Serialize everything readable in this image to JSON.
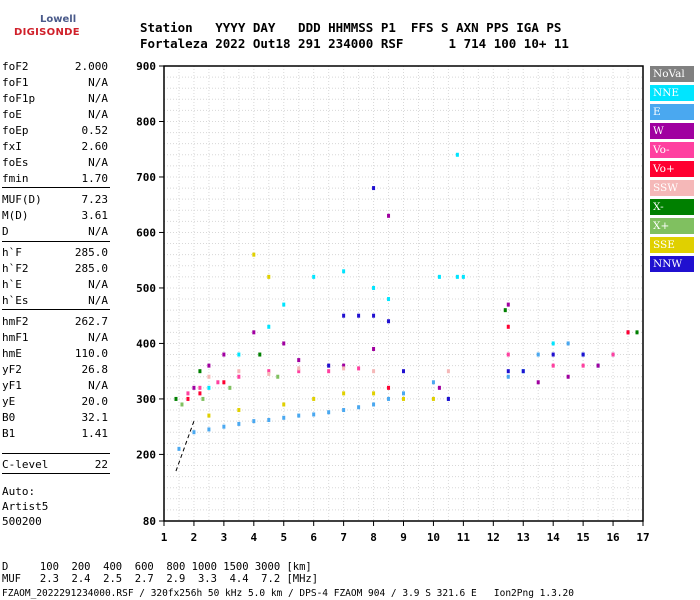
{
  "logo": {
    "top": "Lowell",
    "bottom": "DIGISONDE"
  },
  "header": {
    "line1": "Station   YYYY DAY   DDD HHMMSS P1  FFS S AXN PPS IGA PS",
    "line2": "Fortaleza 2022 Out18 291 234000 RSF      1 714 100 10+ 11"
  },
  "params": [
    {
      "k": "foF2",
      "v": "2.000"
    },
    {
      "k": "foF1",
      "v": "N/A"
    },
    {
      "k": "foF1p",
      "v": "N/A"
    },
    {
      "k": "foE",
      "v": "N/A"
    },
    {
      "k": "foEp",
      "v": "0.52"
    },
    {
      "k": "fxI",
      "v": "2.60"
    },
    {
      "k": "foEs",
      "v": "N/A"
    },
    {
      "k": "fmin",
      "v": "1.70"
    },
    {
      "k": "MUF(D)",
      "v": "7.23"
    },
    {
      "k": "M(D)",
      "v": "3.61"
    },
    {
      "k": "D",
      "v": "N/A"
    },
    {
      "k": "h`F",
      "v": "285.0"
    },
    {
      "k": "h`F2",
      "v": "285.0"
    },
    {
      "k": "h`E",
      "v": "N/A"
    },
    {
      "k": "h`Es",
      "v": "N/A"
    },
    {
      "k": "hmF2",
      "v": "262.7"
    },
    {
      "k": "hmF1",
      "v": "N/A"
    },
    {
      "k": "hmE",
      "v": "110.0"
    },
    {
      "k": "yF2",
      "v": "26.8"
    },
    {
      "k": "yF1",
      "v": "N/A"
    },
    {
      "k": "yE",
      "v": "20.0"
    },
    {
      "k": "B0",
      "v": "32.1"
    },
    {
      "k": "B1",
      "v": "1.41"
    },
    {
      "k": "C-level",
      "v": "22"
    }
  ],
  "auto": {
    "line1": "Auto:",
    "line2": "Artist5",
    "line3": "500200"
  },
  "footer": {
    "d_line": "D     100  200  400  600  800 1000 1500 3000 [km]",
    "muf_line": "MUF   2.3  2.4  2.5  2.7  2.9  3.3  4.4  7.2 [MHz]",
    "info": "FZAOM_2022291234000.RSF / 320fx256h 50 kHz 5.0 km / DPS-4 FZAOM 904 / 3.9 S 321.6 E   Ion2Png 1.3.20"
  },
  "legend": [
    {
      "label": "NoVal",
      "color": "#808080"
    },
    {
      "label": "NNE",
      "color": "#00e5ff"
    },
    {
      "label": "E",
      "color": "#4aa8f0"
    },
    {
      "label": "W",
      "color": "#a000a0"
    },
    {
      "label": "Vo-",
      "color": "#ff40a0"
    },
    {
      "label": "Vo+",
      "color": "#ff0030"
    },
    {
      "label": "SSW",
      "color": "#f5b8b8"
    },
    {
      "label": "X-",
      "color": "#008000"
    },
    {
      "label": "X+",
      "color": "#80c060"
    },
    {
      "label": "SSE",
      "color": "#e0d000"
    },
    {
      "label": "NNW",
      "color": "#2010d0"
    }
  ],
  "chart_data": {
    "type": "scatter",
    "xlim": [
      1,
      17
    ],
    "ylim": [
      80,
      900
    ],
    "x_ticks": [
      1,
      2,
      3,
      4,
      5,
      6,
      7,
      8,
      9,
      10,
      11,
      12,
      13,
      14,
      15,
      16,
      17
    ],
    "y_ticks": [
      80,
      200,
      300,
      400,
      500,
      600,
      700,
      800,
      900
    ],
    "grid": true,
    "series": [
      {
        "name": "E",
        "points": [
          [
            1.5,
            210
          ],
          [
            2.0,
            240
          ],
          [
            2.5,
            245
          ],
          [
            3.0,
            250
          ],
          [
            3.5,
            255
          ],
          [
            4.0,
            260
          ],
          [
            4.5,
            262
          ],
          [
            5.0,
            266
          ],
          [
            5.5,
            270
          ],
          [
            6.0,
            272
          ],
          [
            6.5,
            276
          ],
          [
            7.0,
            280
          ],
          [
            7.5,
            285
          ],
          [
            8.0,
            290
          ],
          [
            8.5,
            300
          ],
          [
            9.0,
            310
          ],
          [
            10.0,
            330
          ],
          [
            10.5,
            300
          ],
          [
            12.5,
            340
          ],
          [
            13.5,
            380
          ],
          [
            14.5,
            400
          ],
          [
            15.5,
            360
          ]
        ]
      },
      {
        "name": "NNE",
        "points": [
          [
            2.5,
            320
          ],
          [
            3.5,
            380
          ],
          [
            4.5,
            430
          ],
          [
            5.0,
            470
          ],
          [
            6.0,
            520
          ],
          [
            7.0,
            530
          ],
          [
            8.0,
            500
          ],
          [
            8.5,
            480
          ],
          [
            10.2,
            520
          ],
          [
            10.8,
            520
          ],
          [
            11.0,
            520
          ],
          [
            10.8,
            740
          ],
          [
            13.0,
            350
          ],
          [
            14.0,
            400
          ],
          [
            15.0,
            380
          ],
          [
            16.0,
            380
          ]
        ]
      },
      {
        "name": "W",
        "points": [
          [
            2.0,
            320
          ],
          [
            2.5,
            360
          ],
          [
            3.0,
            380
          ],
          [
            4.0,
            420
          ],
          [
            5.0,
            400
          ],
          [
            5.5,
            370
          ],
          [
            7.0,
            360
          ],
          [
            8.0,
            390
          ],
          [
            8.5,
            630
          ],
          [
            10.2,
            320
          ],
          [
            12.5,
            470
          ],
          [
            13.5,
            330
          ],
          [
            14.5,
            340
          ],
          [
            15.5,
            360
          ],
          [
            16.5,
            420
          ]
        ]
      },
      {
        "name": "Vo-",
        "points": [
          [
            1.8,
            310
          ],
          [
            2.2,
            320
          ],
          [
            2.8,
            330
          ],
          [
            3.5,
            340
          ],
          [
            4.5,
            350
          ],
          [
            5.5,
            350
          ],
          [
            6.5,
            350
          ],
          [
            7.5,
            355
          ],
          [
            12.5,
            380
          ],
          [
            14.0,
            360
          ],
          [
            15.0,
            360
          ],
          [
            16.0,
            380
          ]
        ]
      },
      {
        "name": "Vo+",
        "points": [
          [
            1.8,
            300
          ],
          [
            2.2,
            310
          ],
          [
            3.0,
            330
          ],
          [
            8.5,
            320
          ],
          [
            12.5,
            430
          ],
          [
            16.5,
            420
          ]
        ]
      },
      {
        "name": "SSW",
        "points": [
          [
            2.5,
            340
          ],
          [
            3.5,
            350
          ],
          [
            4.5,
            345
          ],
          [
            5.5,
            355
          ],
          [
            6.5,
            360
          ],
          [
            7.0,
            355
          ],
          [
            8.0,
            350
          ],
          [
            10.5,
            350
          ]
        ]
      },
      {
        "name": "X-",
        "points": [
          [
            1.4,
            300
          ],
          [
            2.2,
            350
          ],
          [
            4.2,
            380
          ],
          [
            12.4,
            460
          ],
          [
            16.8,
            420
          ]
        ]
      },
      {
        "name": "X+",
        "points": [
          [
            1.6,
            290
          ],
          [
            2.3,
            300
          ],
          [
            3.2,
            320
          ],
          [
            4.8,
            340
          ]
        ]
      },
      {
        "name": "SSE",
        "points": [
          [
            2.5,
            270
          ],
          [
            3.5,
            280
          ],
          [
            4.0,
            560
          ],
          [
            4.5,
            520
          ],
          [
            5.0,
            290
          ],
          [
            6.0,
            300
          ],
          [
            7.0,
            310
          ],
          [
            8.0,
            310
          ],
          [
            9.0,
            300
          ],
          [
            10.0,
            300
          ]
        ]
      },
      {
        "name": "NNW",
        "points": [
          [
            6.5,
            360
          ],
          [
            7.0,
            450
          ],
          [
            7.5,
            450
          ],
          [
            8.0,
            450
          ],
          [
            8.0,
            680
          ],
          [
            8.5,
            440
          ],
          [
            9.0,
            350
          ],
          [
            10.5,
            300
          ],
          [
            12.5,
            350
          ],
          [
            13.0,
            350
          ],
          [
            14.0,
            380
          ],
          [
            15.0,
            380
          ]
        ]
      }
    ],
    "trace_dashed": [
      [
        1.4,
        170
      ],
      [
        2.0,
        260
      ]
    ]
  }
}
